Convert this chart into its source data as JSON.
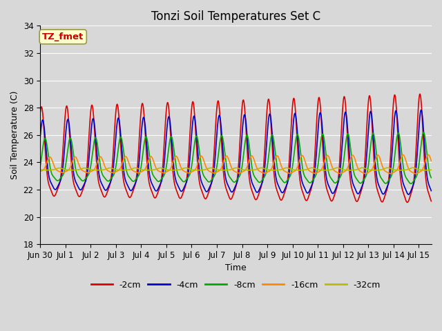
{
  "title": "Tonzi Soil Temperatures Set C",
  "xlabel": "Time",
  "ylabel": "Soil Temperature (C)",
  "ylim": [
    18,
    34
  ],
  "xtick_labels": [
    "Jun 30",
    "Jul 1",
    "Jul 2",
    "Jul 3",
    "Jul 4",
    "Jul 5",
    "Jul 6",
    "Jul 7",
    "Jul 8",
    "Jul 9",
    "Jul 10",
    "Jul 11",
    "Jul 12",
    "Jul 13",
    "Jul 14",
    "Jul 15"
  ],
  "ytick_values": [
    18,
    20,
    22,
    24,
    26,
    28,
    30,
    32,
    34
  ],
  "annotation_text": "TZ_fmet",
  "annotation_color": "#cc0000",
  "annotation_bg": "#ffffcc",
  "annotation_border": "#999944",
  "legend_entries": [
    "-2cm",
    "-4cm",
    "-8cm",
    "-16cm",
    "-32cm"
  ],
  "line_colors": [
    "#dd0000",
    "#0000cc",
    "#00aa00",
    "#ff8800",
    "#bbbb00"
  ],
  "line_width": 1.2,
  "background_color": "#d8d8d8",
  "plot_bg": "#d8d8d8",
  "grid_color": "#ffffff",
  "title_fontsize": 12,
  "label_fontsize": 9,
  "tick_fontsize": 8.5
}
